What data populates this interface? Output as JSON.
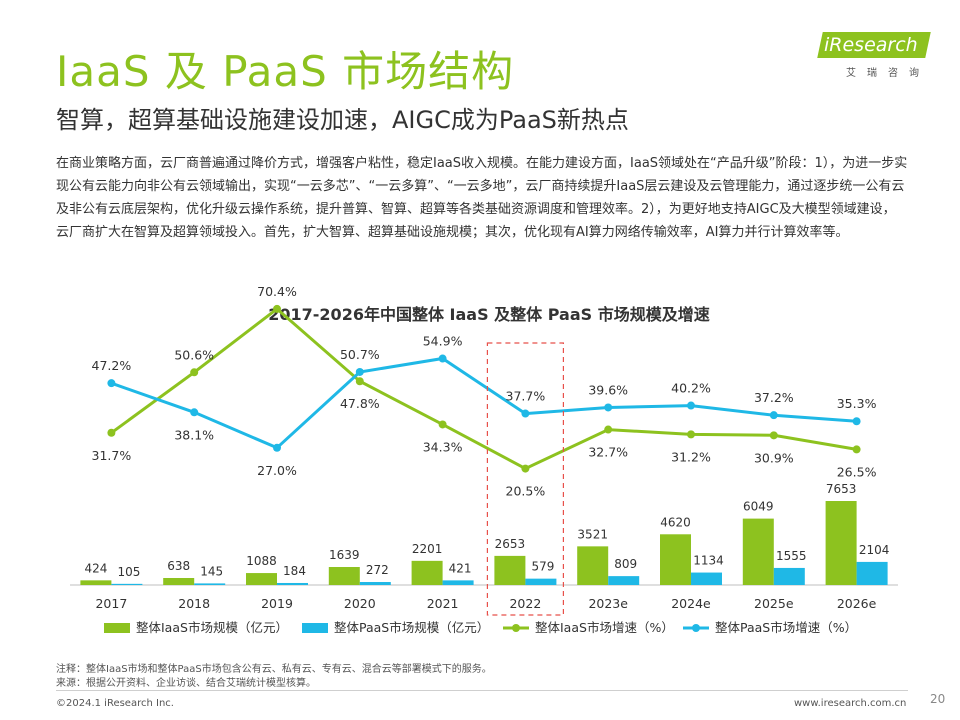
{
  "header": {
    "title": "IaaS 及 PaaS 市场结构",
    "subtitle": "智算，超算基础设施建设加速，AIGC成为PaaS新热点",
    "logo_text": "iResearch",
    "logo_sub": "艾瑞咨询"
  },
  "body_text": "在商业策略方面，云厂商普遍通过降价方式，增强客户粘性，稳定IaaS收入规模。在能力建设方面，IaaS领域处在“产品升级”阶段：1），为进一步实现公有云能力向非公有云领域输出，实现“一云多芯”、“一云多算”、“一云多地”，云厂商持续提升IaaS层云建设及云管理能力，通过逐步统一公有云及非公有云底层架构，优化升级云操作系统，提升普算、智算、超算等各类基础资源调度和管理效率。2），为更好地支持AIGC及大模型领域建设，云厂商扩大在智算及超算领域投入。首先，扩大智算、超算基础设施规模；其次，优化现有AI算力网络传输效率，AI算力并行计算效率等。",
  "colors": {
    "iaas": "#8dc21f",
    "paas": "#1fb8e6",
    "highlight_box": "#e8504a",
    "title": "#8dc21f"
  },
  "chart_data": {
    "type": "bar",
    "title": "2017-2026年中国整体 IaaS 及整体 PaaS 市场规模及增速",
    "categories": [
      "2017",
      "2018",
      "2019",
      "2020",
      "2021",
      "2022",
      "2023e",
      "2024e",
      "2025e",
      "2026e"
    ],
    "highlight_category": "2022",
    "series": [
      {
        "name": "整体IaaS市场规模（亿元）",
        "kind": "bar",
        "values": [
          424,
          638,
          1088,
          1639,
          2201,
          2653,
          3521,
          4620,
          6049,
          7653
        ]
      },
      {
        "name": "整体PaaS市场规模（亿元）",
        "kind": "bar",
        "values": [
          105,
          145,
          184,
          272,
          421,
          579,
          809,
          1134,
          1555,
          2104
        ]
      },
      {
        "name": "整体IaaS市场增速（%）",
        "kind": "line",
        "values": [
          31.7,
          50.6,
          70.4,
          47.8,
          34.3,
          20.5,
          32.7,
          31.2,
          30.9,
          26.5
        ]
      },
      {
        "name": "整体PaaS市场增速（%）",
        "kind": "line",
        "values": [
          47.2,
          38.1,
          27.0,
          50.7,
          54.9,
          37.7,
          39.6,
          40.2,
          37.2,
          35.3
        ]
      }
    ],
    "iaas_growth_labels": [
      "31.7%",
      "50.6%",
      "70.4%",
      "47.8%",
      "34.3%",
      "20.5%",
      "32.7%",
      "31.2%",
      "30.9%",
      "26.5%"
    ],
    "paas_growth_labels": [
      "47.2%",
      "38.1%",
      "27.0%",
      "50.7%",
      "54.9%",
      "37.7%",
      "39.6%",
      "40.2%",
      "37.2%",
      "35.3%"
    ],
    "legend_position": "bottom",
    "grid": false
  },
  "notes": {
    "note": "注释：整体IaaS市场和整体PaaS市场包含公有云、私有云、专有云、混合云等部署模式下的服务。",
    "source": "来源：根据公开资料、企业访谈、结合艾瑞统计模型核算。"
  },
  "footer": {
    "copyright": "©2024.1 iResearch Inc.",
    "website": "www.iresearch.com.cn",
    "page_number": "20"
  }
}
